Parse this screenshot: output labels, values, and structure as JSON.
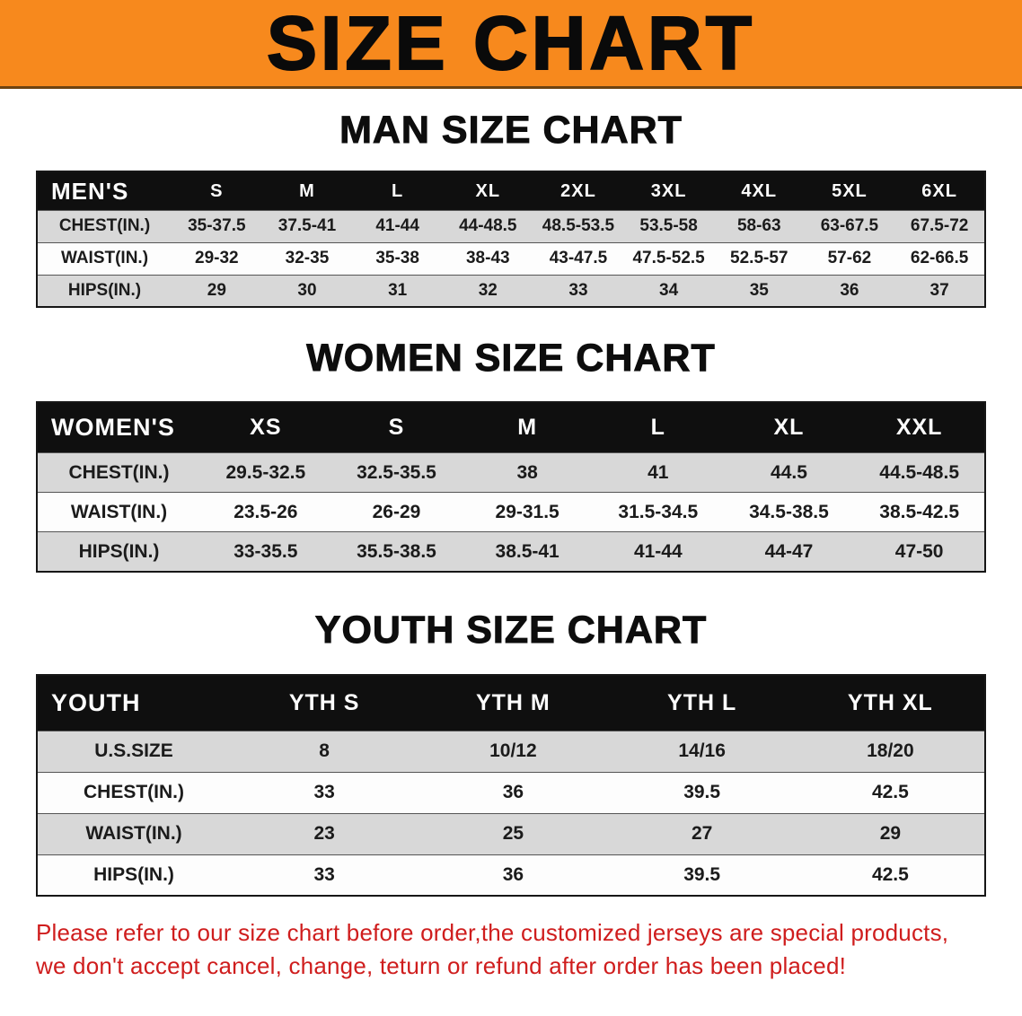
{
  "banner": {
    "title": "SIZE CHART"
  },
  "colors": {
    "banner_bg": "#f7891d",
    "table_header_bg": "#0f0f0f",
    "row_stripe": "#d8d8d8",
    "disclaimer_text": "#cf1d1d"
  },
  "sections": [
    {
      "heading": "MAN SIZE CHART",
      "table": {
        "header": [
          "MEN'S",
          "S",
          "M",
          "L",
          "XL",
          "2XL",
          "3XL",
          "4XL",
          "5XL",
          "6XL"
        ],
        "rows": [
          [
            "CHEST(IN.)",
            "35-37.5",
            "37.5-41",
            "41-44",
            "44-48.5",
            "48.5-53.5",
            "53.5-58",
            "58-63",
            "63-67.5",
            "67.5-72"
          ],
          [
            "WAIST(IN.)",
            "29-32",
            "32-35",
            "35-38",
            "38-43",
            "43-47.5",
            "47.5-52.5",
            "52.5-57",
            "57-62",
            "62-66.5"
          ],
          [
            "HIPS(IN.)",
            "29",
            "30",
            "31",
            "32",
            "33",
            "34",
            "35",
            "36",
            "37"
          ]
        ]
      }
    },
    {
      "heading": "WOMEN SIZE CHART",
      "table": {
        "header": [
          "WOMEN'S",
          "XS",
          "S",
          "M",
          "L",
          "XL",
          "XXL"
        ],
        "rows": [
          [
            "CHEST(IN.)",
            "29.5-32.5",
            "32.5-35.5",
            "38",
            "41",
            "44.5",
            "44.5-48.5"
          ],
          [
            "WAIST(IN.)",
            "23.5-26",
            "26-29",
            "29-31.5",
            "31.5-34.5",
            "34.5-38.5",
            "38.5-42.5"
          ],
          [
            "HIPS(IN.)",
            "33-35.5",
            "35.5-38.5",
            "38.5-41",
            "41-44",
            "44-47",
            "47-50"
          ]
        ]
      }
    },
    {
      "heading": "YOUTH SIZE CHART",
      "table": {
        "header": [
          "YOUTH",
          "YTH S",
          "YTH M",
          "YTH L",
          "YTH XL"
        ],
        "rows": [
          [
            "U.S.SIZE",
            "8",
            "10/12",
            "14/16",
            "18/20"
          ],
          [
            "CHEST(IN.)",
            "33",
            "36",
            "39.5",
            "42.5"
          ],
          [
            "WAIST(IN.)",
            "23",
            "25",
            "27",
            "29"
          ],
          [
            "HIPS(IN.)",
            "33",
            "36",
            "39.5",
            "42.5"
          ]
        ]
      }
    }
  ],
  "footer": {
    "line1": "Please refer to our size chart before order,the customized jerseys are special products,",
    "line2": "we don't accept cancel, change, teturn or refund after order has been placed!"
  }
}
